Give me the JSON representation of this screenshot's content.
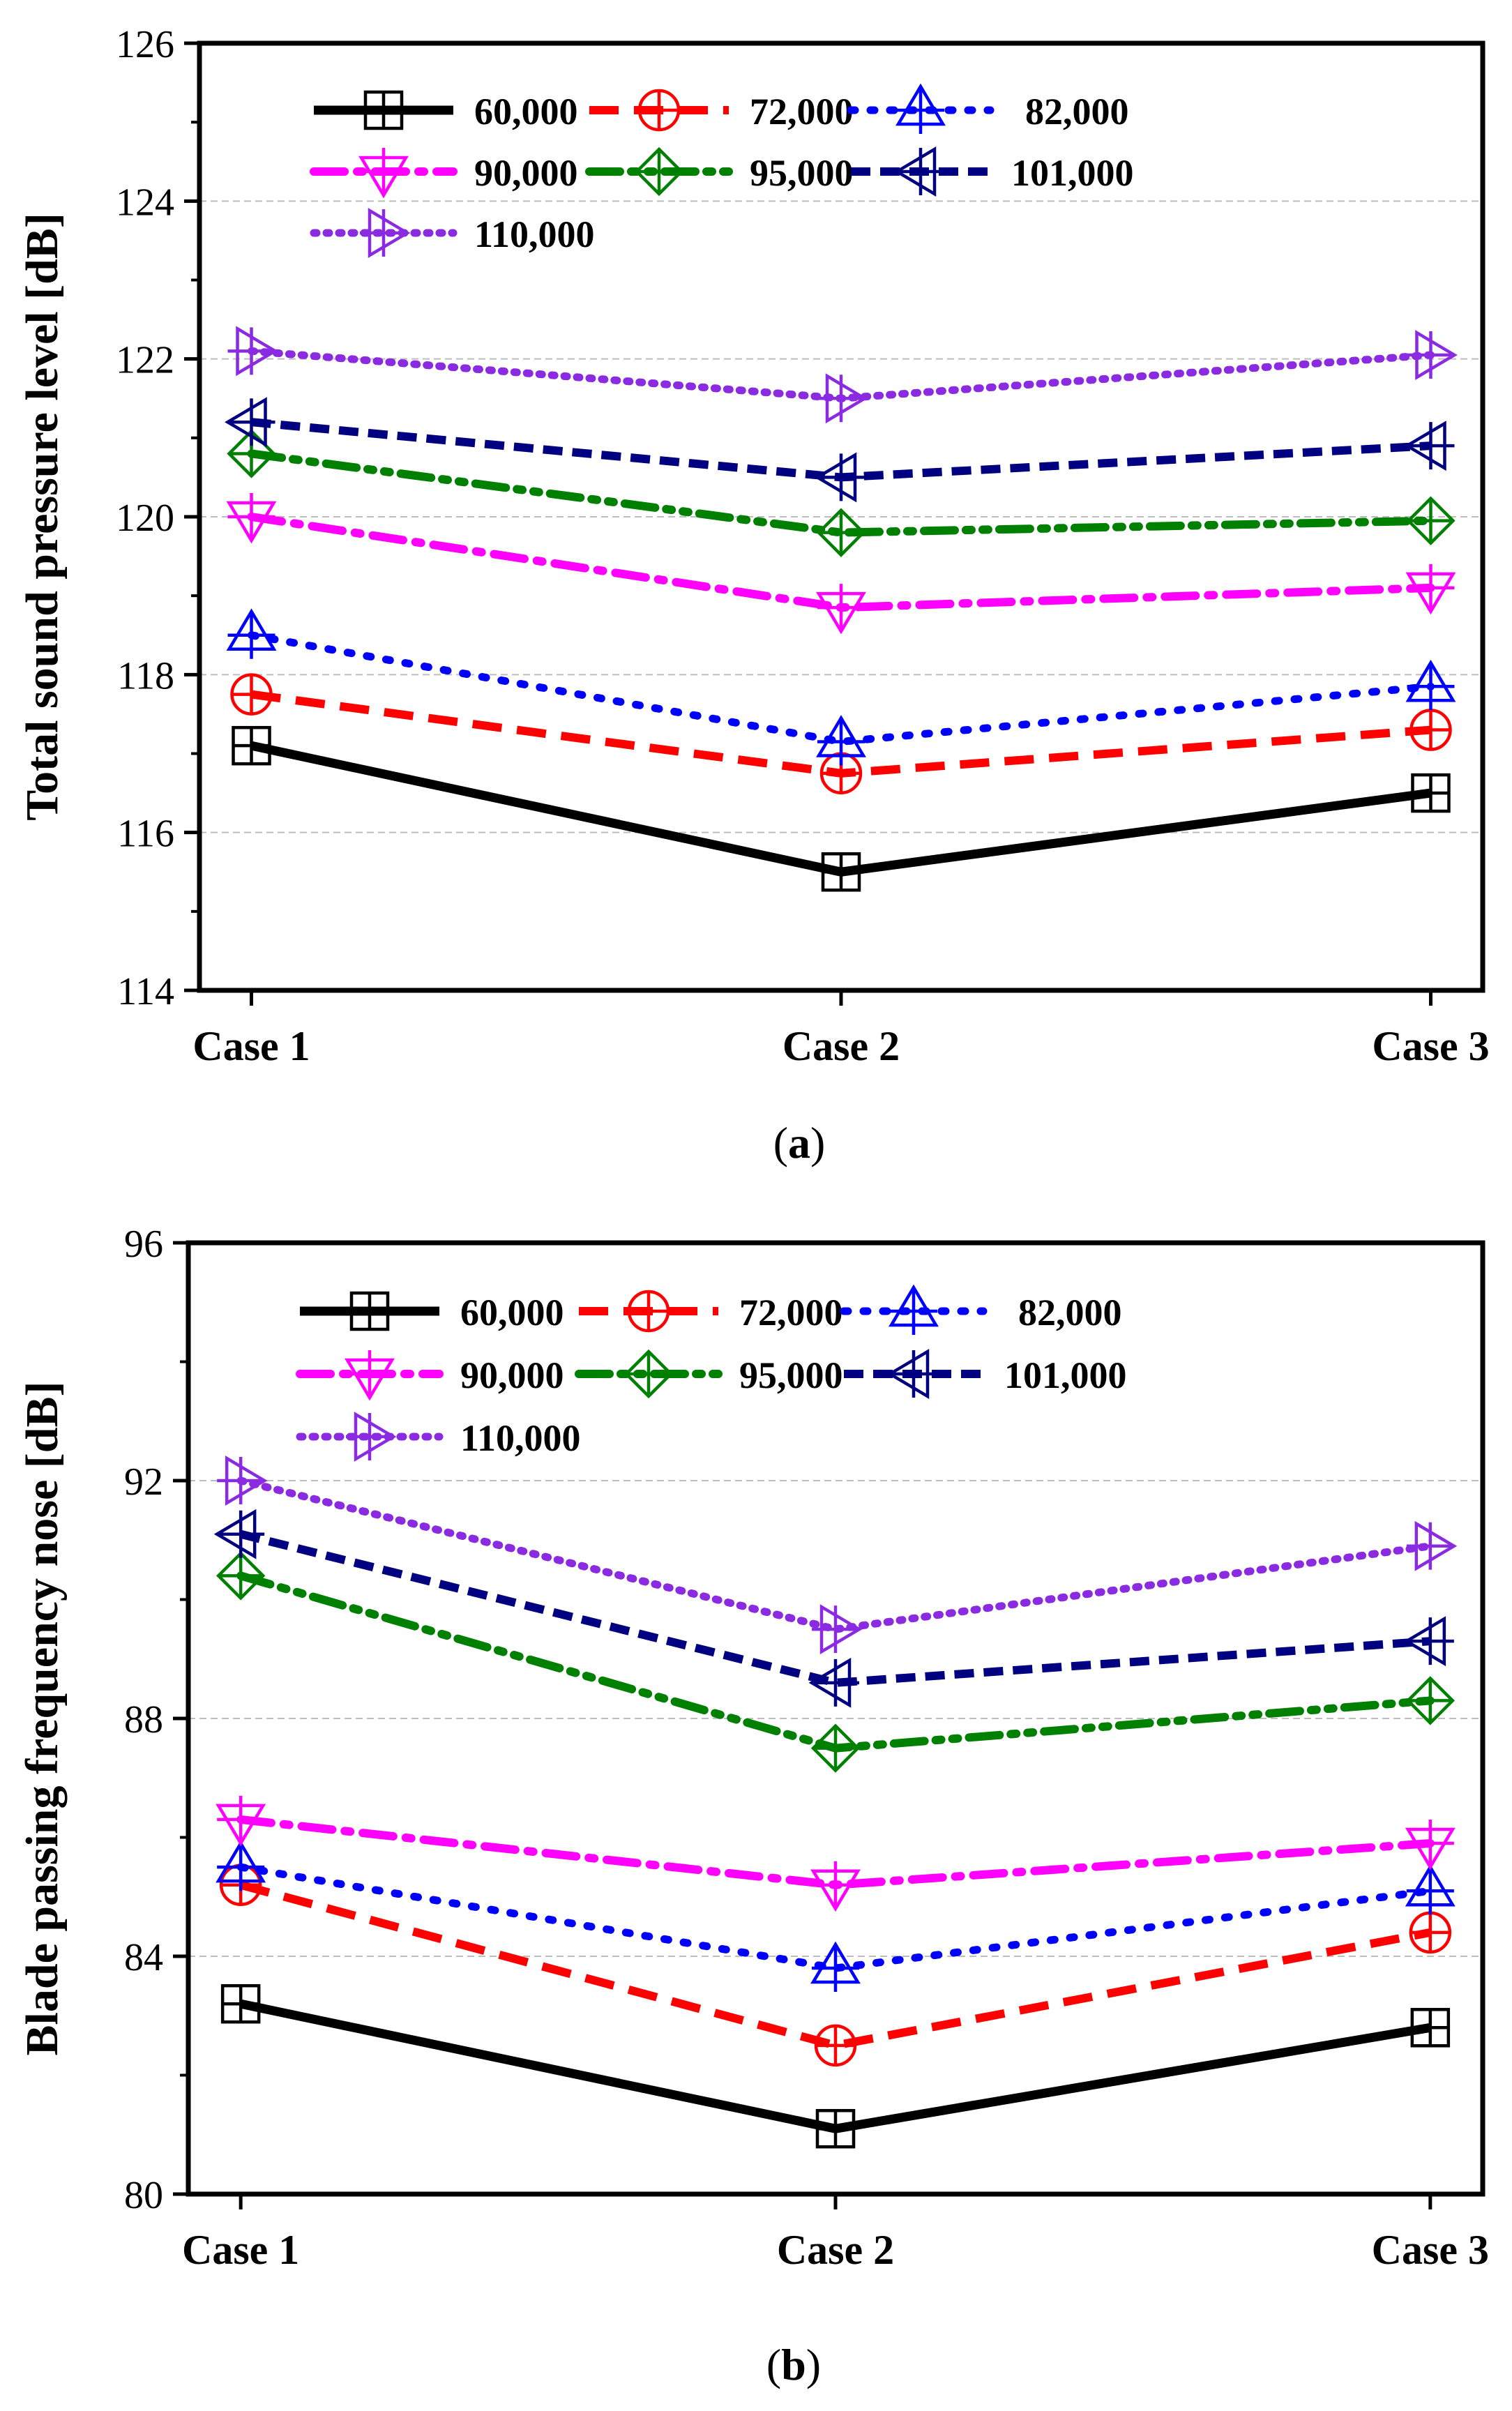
{
  "chart_data": [
    {
      "type": "line",
      "panel_label": "(a)",
      "ylabel": "Total sound pressure level [dB]",
      "xlabel": "",
      "categories": [
        "Case 1",
        "Case 2",
        "Case 3"
      ],
      "ylim": [
        114,
        126
      ],
      "yticks": [
        114,
        116,
        118,
        120,
        122,
        124,
        126
      ],
      "grid": true,
      "legend": "top",
      "series": [
        {
          "name": "60,000",
          "values": [
            117.1,
            115.5,
            116.5
          ],
          "color": "#000000",
          "marker": "square",
          "dash": "solid"
        },
        {
          "name": "72,000",
          "values": [
            117.75,
            116.75,
            117.3
          ],
          "color": "#ff0000",
          "marker": "circle",
          "dash": "dash"
        },
        {
          "name": "82,000",
          "values": [
            118.5,
            117.15,
            117.85
          ],
          "color": "#0000ff",
          "marker": "triangle-up",
          "dash": "dot"
        },
        {
          "name": "90,000",
          "values": [
            120.0,
            118.85,
            119.1
          ],
          "color": "#ff00ff",
          "marker": "triangle-down",
          "dash": "dashdot"
        },
        {
          "name": "95,000",
          "values": [
            120.8,
            119.8,
            119.95
          ],
          "color": "#008000",
          "marker": "diamond",
          "dash": "dashdotdot"
        },
        {
          "name": "101,000",
          "values": [
            121.2,
            120.5,
            120.9
          ],
          "color": "#000080",
          "marker": "triangle-left",
          "dash": "shortdash"
        },
        {
          "name": "110,000",
          "values": [
            122.1,
            121.5,
            122.05
          ],
          "color": "#8a2be2",
          "marker": "triangle-right",
          "dash": "shortdot"
        }
      ]
    },
    {
      "type": "line",
      "panel_label": "(b)",
      "ylabel": "Blade passing frequency nose [dB]",
      "xlabel": "",
      "categories": [
        "Case 1",
        "Case 2",
        "Case 3"
      ],
      "ylim": [
        80,
        96
      ],
      "yticks": [
        80,
        84,
        88,
        92,
        96
      ],
      "grid": true,
      "legend": "top",
      "series": [
        {
          "name": "60,000",
          "values": [
            83.2,
            81.1,
            82.8
          ],
          "color": "#000000",
          "marker": "square",
          "dash": "solid"
        },
        {
          "name": "72,000",
          "values": [
            85.2,
            82.5,
            84.4
          ],
          "color": "#ff0000",
          "marker": "circle",
          "dash": "dash"
        },
        {
          "name": "82,000",
          "values": [
            85.5,
            83.8,
            85.1
          ],
          "color": "#0000ff",
          "marker": "triangle-up",
          "dash": "dot"
        },
        {
          "name": "90,000",
          "values": [
            86.3,
            85.2,
            85.9
          ],
          "color": "#ff00ff",
          "marker": "triangle-down",
          "dash": "dashdot"
        },
        {
          "name": "95,000",
          "values": [
            90.4,
            87.5,
            88.3
          ],
          "color": "#008000",
          "marker": "diamond",
          "dash": "dashdotdot"
        },
        {
          "name": "101,000",
          "values": [
            91.1,
            88.6,
            89.3
          ],
          "color": "#000080",
          "marker": "triangle-left",
          "dash": "shortdash"
        },
        {
          "name": "110,000",
          "values": [
            92.0,
            89.5,
            90.9
          ],
          "color": "#8a2be2",
          "marker": "triangle-right",
          "dash": "shortdot"
        }
      ]
    }
  ]
}
